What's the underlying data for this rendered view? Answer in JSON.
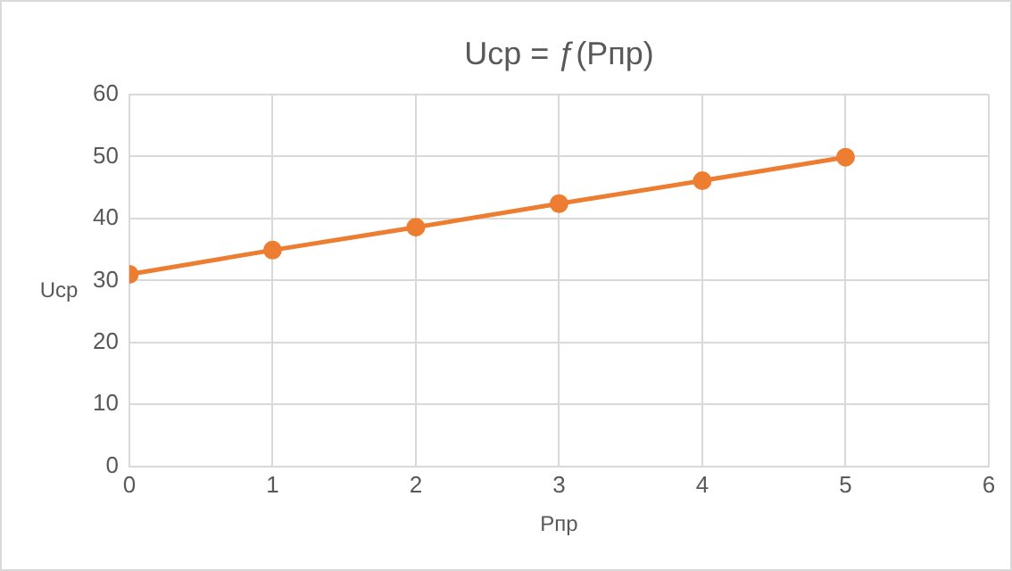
{
  "chart_data": {
    "type": "line",
    "title": "Uср = ƒ(Рпр)",
    "xlabel": "Рпр",
    "ylabel": "Uср",
    "x": [
      0,
      1,
      2,
      3,
      4,
      5
    ],
    "series": [
      {
        "color": "#ed7d31",
        "values": [
          31,
          34.9,
          38.6,
          42.4,
          46.1,
          49.9
        ]
      }
    ],
    "xlim": [
      0,
      6
    ],
    "xticks": [
      0,
      1,
      2,
      3,
      4,
      5,
      6
    ],
    "ylim": [
      0,
      60
    ],
    "yticks": [
      0,
      10,
      20,
      30,
      40,
      50,
      60
    ],
    "grid": true,
    "legend": false,
    "marker": "circle",
    "line_style": "solid"
  }
}
